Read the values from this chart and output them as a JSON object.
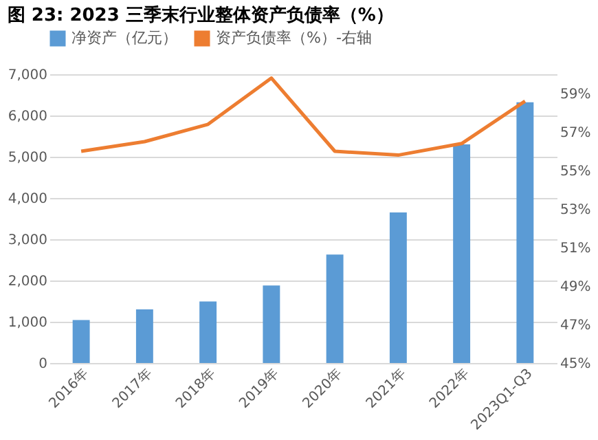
{
  "chart_data": {
    "type": "bar",
    "title": "图 23:  2023 三季末行业整体资产负债率（%）",
    "categories": [
      "2016年",
      "2017年",
      "2018年",
      "2019年",
      "2020年",
      "2021年",
      "2022年",
      "2023Q1-Q3"
    ],
    "series": [
      {
        "name": "净资产（亿元）",
        "color": "#5b9bd5",
        "values": [
          1040,
          1300,
          1490,
          1880,
          2630,
          3650,
          5300,
          6320
        ]
      },
      {
        "name": "资产负债率（%）-右轴",
        "type": "line",
        "axis": "y2",
        "color": "#ed7d31",
        "values": [
          56.0,
          56.5,
          57.4,
          59.8,
          56.0,
          55.8,
          56.4,
          58.6
        ]
      }
    ],
    "ylim": [
      0,
      7000
    ],
    "yticks": [
      {
        "value": 0,
        "label": "0"
      },
      {
        "value": 1000,
        "label": "1,000"
      },
      {
        "value": 2000,
        "label": "2,000"
      },
      {
        "value": 3000,
        "label": "3,000"
      },
      {
        "value": 4000,
        "label": "4,000"
      },
      {
        "value": 5000,
        "label": "5,000"
      },
      {
        "value": 6000,
        "label": "6,000"
      },
      {
        "value": 7000,
        "label": "7,000"
      }
    ],
    "y2lim": [
      45,
      60
    ],
    "y2ticks": [
      {
        "value": 45,
        "label": "45%"
      },
      {
        "value": 47,
        "label": "47%"
      },
      {
        "value": 49,
        "label": "49%"
      },
      {
        "value": 51,
        "label": "51%"
      },
      {
        "value": 53,
        "label": "53%"
      },
      {
        "value": 55,
        "label": "55%"
      },
      {
        "value": 57,
        "label": "57%"
      },
      {
        "value": 59,
        "label": "59%"
      }
    ],
    "grid": "y",
    "legend": "top",
    "marker": "none",
    "line_style": "solid"
  }
}
